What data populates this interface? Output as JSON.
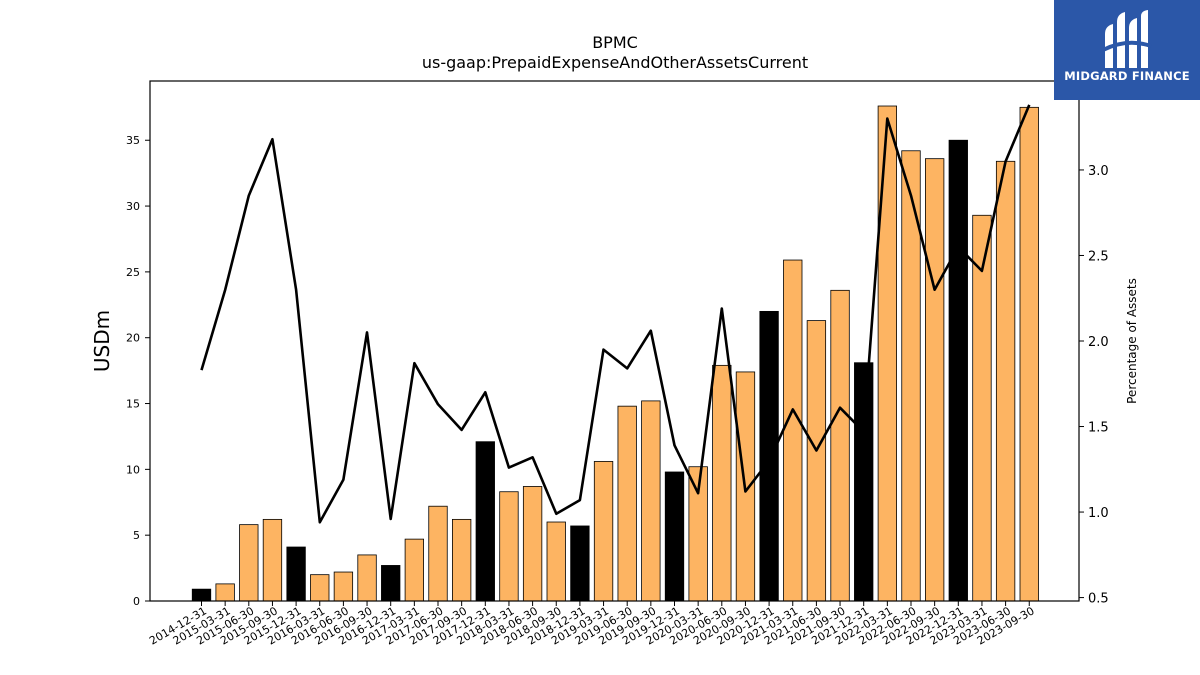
{
  "brand": {
    "name": "MIDGARD FINANCE",
    "logo_icon": "midgard-mark-icon",
    "background": "#2b57a8"
  },
  "colors": {
    "bar_default": "#fdb462",
    "bar_highlight": "#000000",
    "line": "#000000"
  },
  "chart_data": {
    "type": "bar",
    "title": "BPMC",
    "subtitle": "us-gaap:PrepaidExpenseAndOtherAssetsCurrent",
    "ylabel": "USDm",
    "y2label": "Percentage of Assets",
    "ylim": [
      0,
      39.5
    ],
    "y2lim": [
      0.48,
      3.52
    ],
    "yticks": [
      0,
      5,
      10,
      15,
      20,
      25,
      30,
      35
    ],
    "y2ticks": [
      0.5,
      1.0,
      1.5,
      2.0,
      2.5,
      3.0
    ],
    "y2ticklabels": [
      "0.5",
      "1.0",
      "1.5",
      "2.0",
      "2.5",
      "3.0"
    ],
    "categories": [
      "2014-12-31",
      "2015-03-31",
      "2015-06-30",
      "2015-09-30",
      "2015-12-31",
      "2016-03-31",
      "2016-06-30",
      "2016-09-30",
      "2016-12-31",
      "2017-03-31",
      "2017-06-30",
      "2017-09-30",
      "2017-12-31",
      "2018-03-31",
      "2018-06-30",
      "2018-09-30",
      "2018-12-31",
      "2019-03-31",
      "2019-06-30",
      "2019-09-30",
      "2019-12-31",
      "2020-03-31",
      "2020-06-30",
      "2020-09-30",
      "2020-12-31",
      "2021-03-31",
      "2021-06-30",
      "2021-09-30",
      "2021-12-31",
      "2022-03-31",
      "2022-06-30",
      "2022-09-30",
      "2022-12-31",
      "2023-03-31",
      "2023-06-30",
      "2023-09-30"
    ],
    "series": [
      {
        "kind": "bar",
        "values": [
          0.9,
          1.3,
          5.8,
          6.2,
          4.1,
          2.0,
          2.2,
          3.5,
          2.7,
          4.7,
          7.2,
          6.2,
          12.1,
          8.3,
          8.7,
          6.0,
          5.7,
          10.6,
          14.8,
          15.2,
          9.8,
          10.2,
          17.9,
          17.4,
          22.0,
          25.9,
          21.3,
          23.6,
          18.1,
          37.6,
          34.2,
          33.6,
          35.0,
          29.3,
          33.4,
          37.5
        ],
        "highlight": [
          true,
          false,
          false,
          false,
          true,
          false,
          false,
          false,
          true,
          false,
          false,
          false,
          true,
          false,
          false,
          false,
          true,
          false,
          false,
          false,
          true,
          false,
          false,
          false,
          true,
          false,
          false,
          false,
          true,
          false,
          false,
          false,
          true,
          false,
          false,
          false
        ]
      },
      {
        "kind": "line",
        "axis": "right",
        "values": [
          1.83,
          2.3,
          2.85,
          3.18,
          2.3,
          0.94,
          1.19,
          2.05,
          0.96,
          1.87,
          1.63,
          1.48,
          1.7,
          1.26,
          1.32,
          0.99,
          1.07,
          1.95,
          1.84,
          2.06,
          1.39,
          1.11,
          2.19,
          1.12,
          1.3,
          1.6,
          1.36,
          1.61,
          1.47,
          3.3,
          2.85,
          2.3,
          2.55,
          2.41,
          3.05,
          3.38
        ]
      }
    ]
  }
}
